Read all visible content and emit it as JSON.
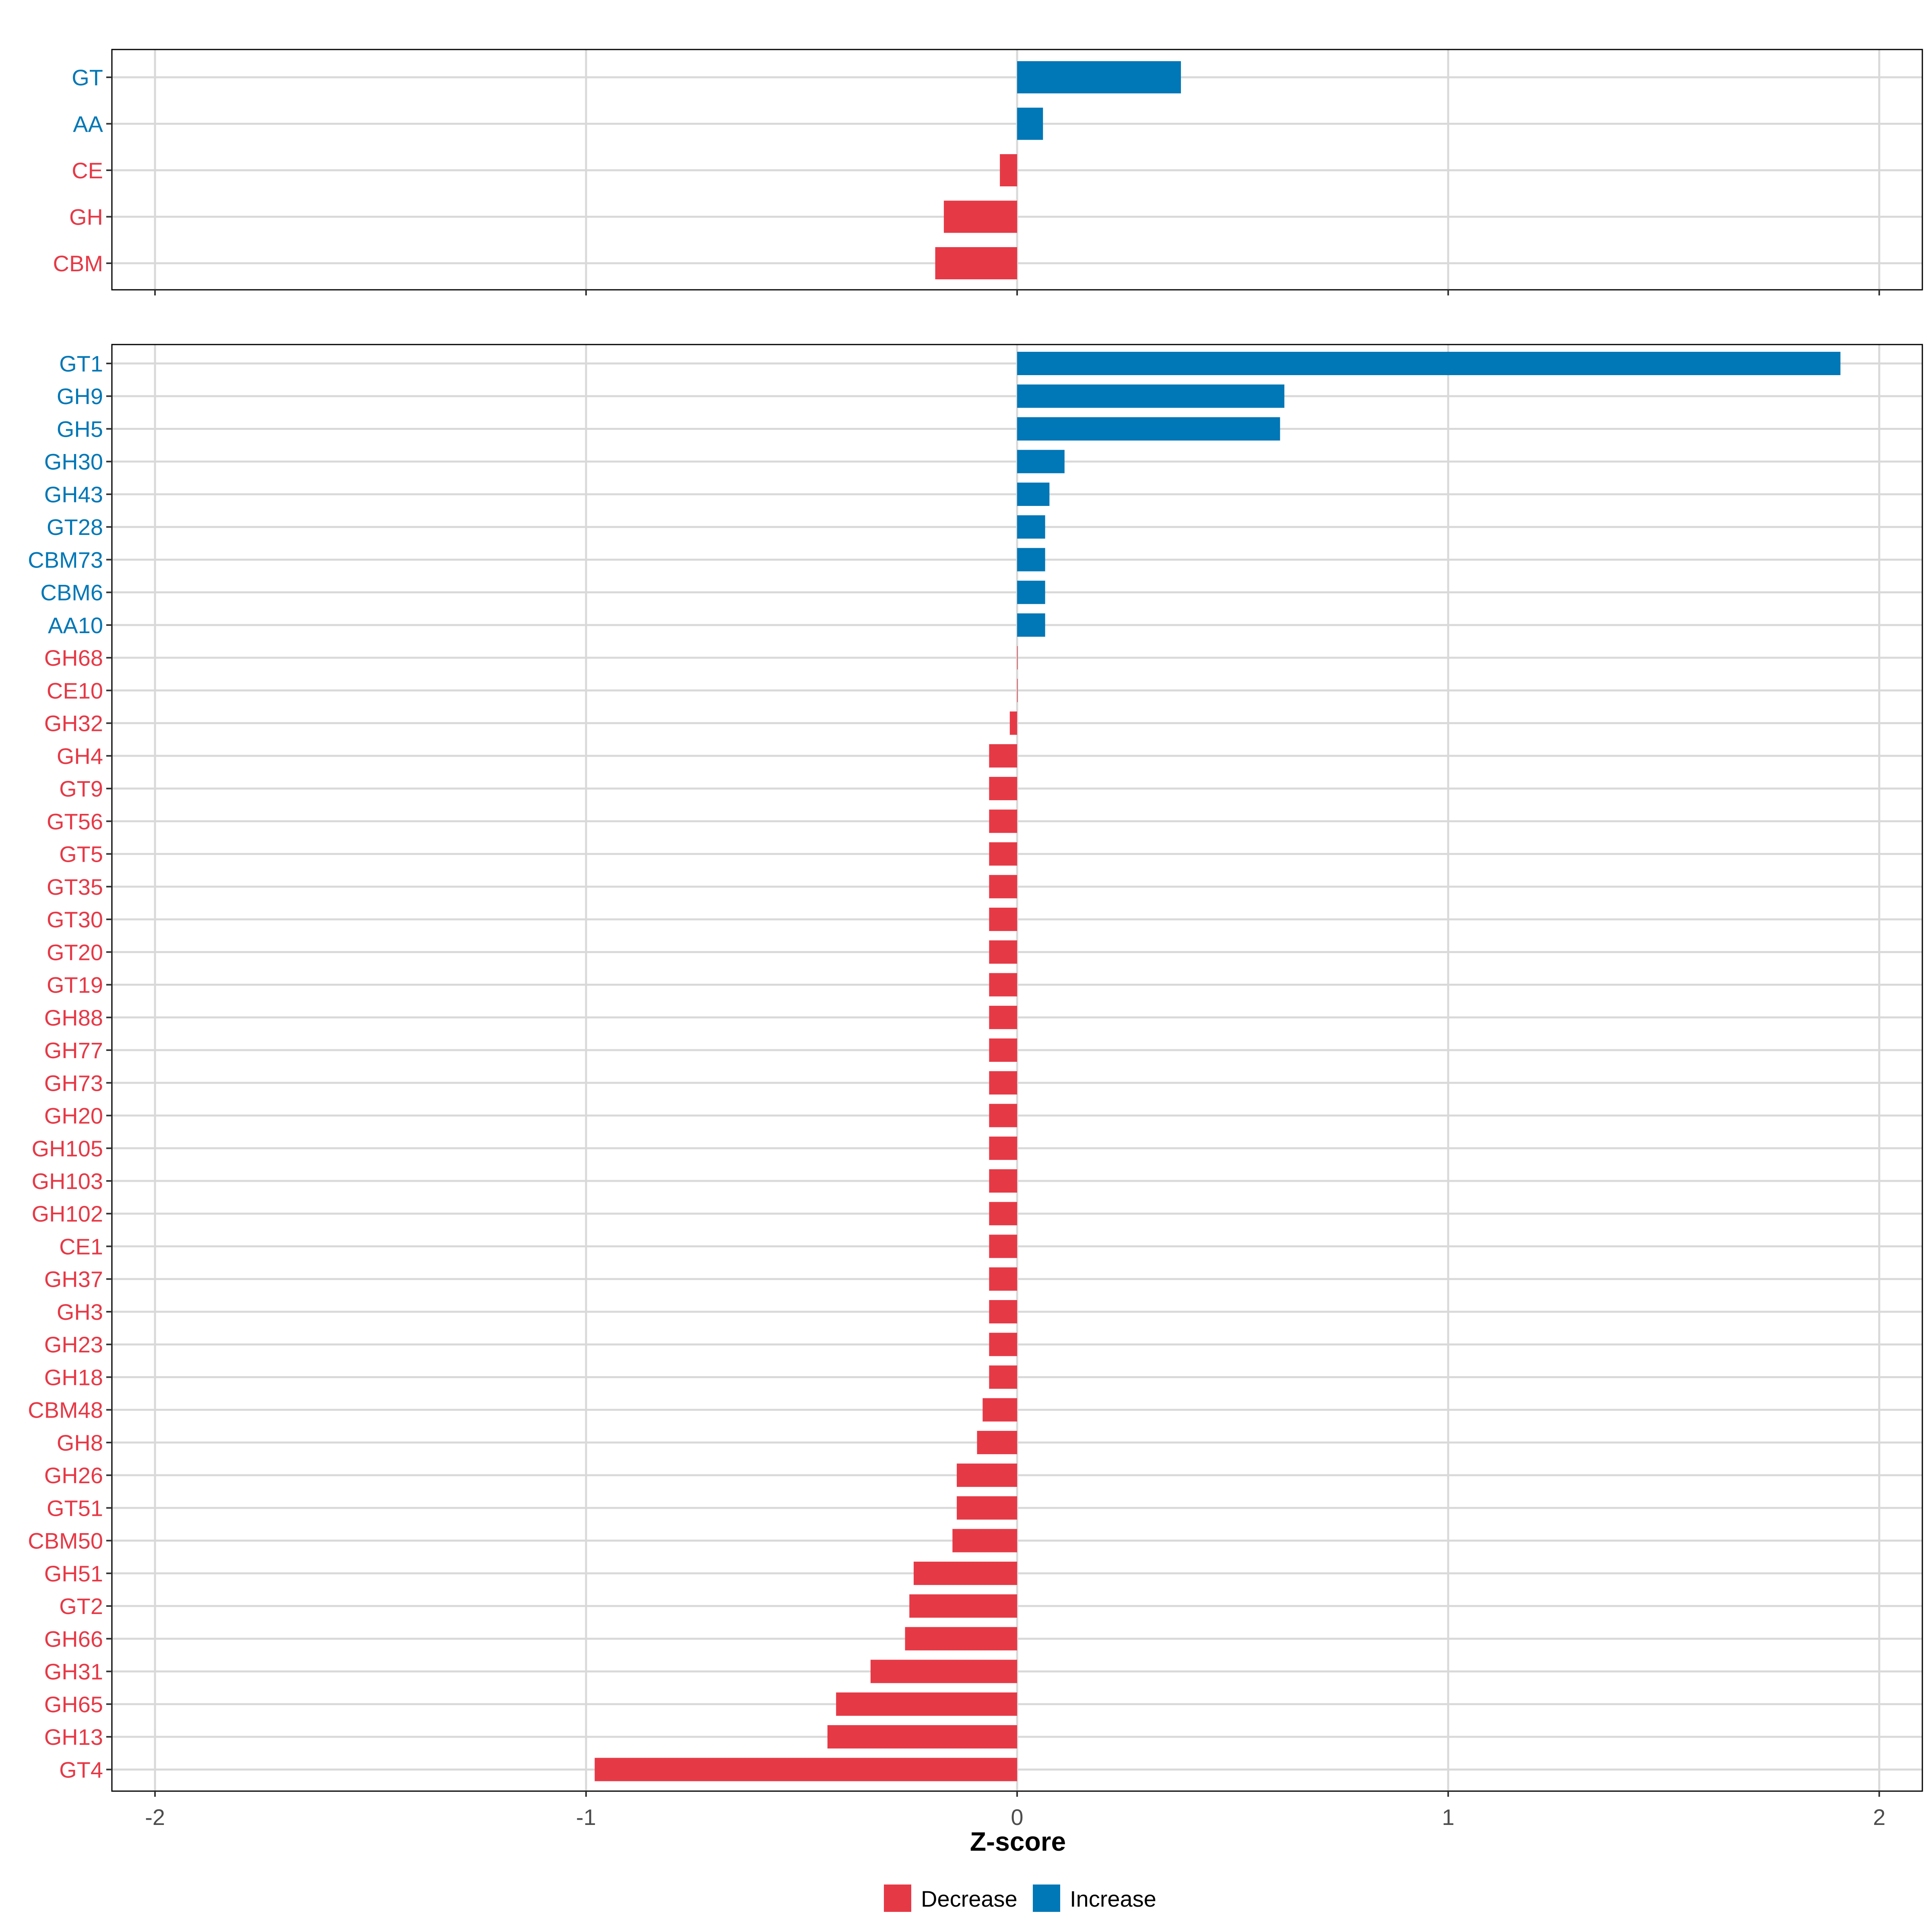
{
  "chart_data": [
    {
      "type": "bar",
      "orientation": "horizontal",
      "panel": "top",
      "categories": [
        "GT",
        "AA",
        "CE",
        "GH",
        "CBM"
      ],
      "values": [
        0.38,
        0.06,
        -0.04,
        -0.17,
        -0.19
      ],
      "direction": [
        "Increase",
        "Increase",
        "Decrease",
        "Decrease",
        "Decrease"
      ],
      "xlim": [
        -2.1,
        2.1
      ],
      "xticks": [
        -2,
        -1,
        0,
        1,
        2
      ],
      "grid": true
    },
    {
      "type": "bar",
      "orientation": "horizontal",
      "panel": "bottom",
      "categories": [
        "GT1",
        "GH9",
        "GH5",
        "GH30",
        "GH43",
        "GT28",
        "CBM73",
        "CBM6",
        "AA10",
        "GH68",
        "CE10",
        "GH32",
        "GH4",
        "GT9",
        "GT56",
        "GT5",
        "GT35",
        "GT30",
        "GT20",
        "GT19",
        "GH88",
        "GH77",
        "GH73",
        "GH20",
        "GH105",
        "GH103",
        "GH102",
        "CE1",
        "GH37",
        "GH3",
        "GH23",
        "GH18",
        "CBM48",
        "GH8",
        "GH26",
        "GT51",
        "CBM50",
        "GH51",
        "GT2",
        "GH66",
        "GH31",
        "GH65",
        "GH13",
        "GT4"
      ],
      "values": [
        1.91,
        0.62,
        0.61,
        0.11,
        0.075,
        0.065,
        0.065,
        0.065,
        0.065,
        0.0,
        0.0,
        -0.017,
        -0.065,
        -0.065,
        -0.065,
        -0.065,
        -0.065,
        -0.065,
        -0.065,
        -0.065,
        -0.065,
        -0.065,
        -0.065,
        -0.065,
        -0.065,
        -0.065,
        -0.065,
        -0.065,
        -0.065,
        -0.065,
        -0.065,
        -0.065,
        -0.08,
        -0.093,
        -0.14,
        -0.14,
        -0.15,
        -0.24,
        -0.25,
        -0.26,
        -0.34,
        -0.42,
        -0.44,
        -0.98
      ],
      "direction": [
        "Increase",
        "Increase",
        "Increase",
        "Increase",
        "Increase",
        "Increase",
        "Increase",
        "Increase",
        "Increase",
        "Decrease",
        "Decrease",
        "Decrease",
        "Decrease",
        "Decrease",
        "Decrease",
        "Decrease",
        "Decrease",
        "Decrease",
        "Decrease",
        "Decrease",
        "Decrease",
        "Decrease",
        "Decrease",
        "Decrease",
        "Decrease",
        "Decrease",
        "Decrease",
        "Decrease",
        "Decrease",
        "Decrease",
        "Decrease",
        "Decrease",
        "Decrease",
        "Decrease",
        "Decrease",
        "Decrease",
        "Decrease",
        "Decrease",
        "Decrease",
        "Decrease",
        "Decrease",
        "Decrease",
        "Decrease",
        "Decrease"
      ],
      "xlim": [
        -2.1,
        2.1
      ],
      "xticks": [
        -2,
        -1,
        0,
        1,
        2
      ],
      "xtick_labels": [
        "-2",
        "-1",
        "0",
        "1",
        "2"
      ],
      "xlabel": "Z-score",
      "grid": true
    }
  ],
  "legend": {
    "placement": "bottom",
    "items": [
      {
        "label": "Decrease",
        "color": "#e63946"
      },
      {
        "label": "Increase",
        "color": "#0077b6"
      }
    ]
  },
  "colors": {
    "Decrease": "#e63946",
    "Increase": "#0077b6"
  }
}
